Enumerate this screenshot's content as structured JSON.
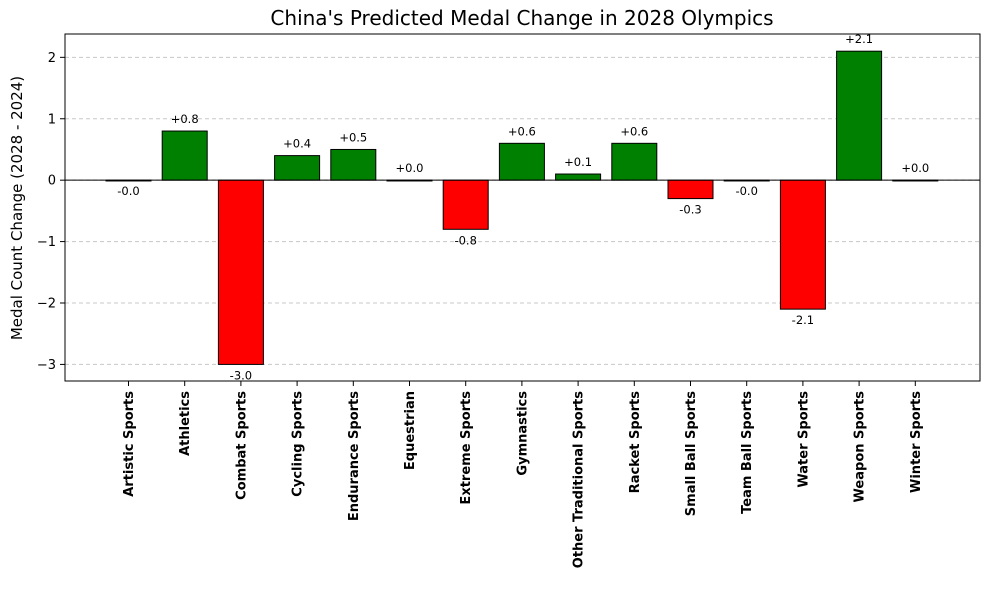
{
  "chart_data": {
    "type": "bar",
    "title": "China's Predicted Medal Change in 2028 Olympics",
    "xlabel": "",
    "ylabel": "Medal Count Change (2028 - 2024)",
    "ylim": [
      -3.27,
      2.38
    ],
    "yticks": [
      -3,
      -2,
      -1,
      0,
      1,
      2
    ],
    "grid": "y-dashed",
    "categories": [
      "Artistic Sports",
      "Athletics",
      "Combat Sports",
      "Cycling Sports",
      "Endurance Sports",
      "Equestrian",
      "Extreme Sports",
      "Gymnastics",
      "Other Traditional Sports",
      "Racket Sports",
      "Small Ball Sports",
      "Team Ball Sports",
      "Water Sports",
      "Weapon Sports",
      "Winter Sports"
    ],
    "values": [
      -0.0,
      0.8,
      -3.0,
      0.4,
      0.5,
      0.0,
      -0.8,
      0.6,
      0.1,
      0.6,
      -0.3,
      -0.0,
      -2.1,
      2.1,
      0.0
    ],
    "data_labels": [
      "-0.0",
      "+0.8",
      "-3.0",
      "+0.4",
      "+0.5",
      "+0.0",
      "-0.8",
      "+0.6",
      "+0.1",
      "+0.6",
      "-0.3",
      "-0.0",
      "-2.1",
      "+2.1",
      "+0.0"
    ],
    "colors": {
      "positive": "#008000",
      "negative": "#ff0000",
      "edge": "#000000",
      "zero_line": "#000000",
      "grid": "#c8c8c8"
    }
  }
}
